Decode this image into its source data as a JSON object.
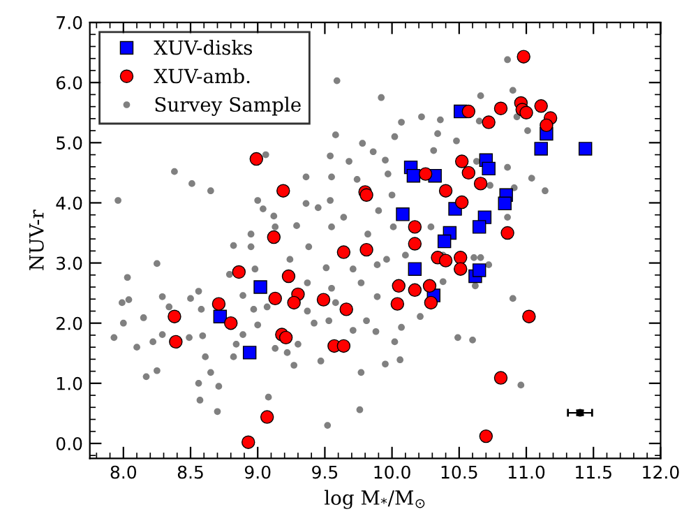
{
  "chart_data": {
    "type": "scatter",
    "xlabel": "log M$_{*}$/M$_{⊙}$",
    "ylabel": "NUV-r",
    "xlim": [
      7.75,
      12.0
    ],
    "xticks": [
      {
        "value": 8,
        "label": "8.0"
      },
      8.5,
      {
        "value": 9,
        "label": "9.0"
      },
      9.5,
      {
        "value": 10,
        "label": "10.0"
      },
      10.5,
      {
        "value": 11,
        "label": "11.0"
      },
      11.5,
      {
        "value": 12,
        "label": "12.0"
      }
    ],
    "ylim": [
      -0.25,
      7.0
    ],
    "yticks": [
      {
        "value": 0,
        "label": "0.0"
      },
      {
        "value": 1,
        "label": "1.0"
      },
      {
        "value": 2,
        "label": "2.0"
      },
      {
        "value": 3,
        "label": "3.0"
      },
      {
        "value": 4,
        "label": "4.0"
      },
      {
        "value": 5,
        "label": "5.0"
      },
      {
        "value": 6,
        "label": "6.0"
      },
      {
        "value": 7,
        "label": "7.0"
      }
    ],
    "grid": false,
    "legend": "top left",
    "series": [
      {
        "name": "XUV-disks",
        "color": "#0000ff",
        "marker": "square",
        "x": [
          9.02,
          8.72,
          8.94,
          10.51,
          10.14,
          10.16,
          10.32,
          10.08,
          10.47,
          10.43,
          10.39,
          11.15,
          11.11,
          11.44,
          10.7,
          10.72,
          10.85,
          10.84,
          10.69,
          10.65,
          10.17,
          10.31,
          10.62,
          10.65
        ],
        "values": [
          2.6,
          2.11,
          1.51,
          5.52,
          4.59,
          4.45,
          4.45,
          3.81,
          3.9,
          3.5,
          3.36,
          5.15,
          4.9,
          4.9,
          4.71,
          4.57,
          4.13,
          3.99,
          3.76,
          3.6,
          2.9,
          2.46,
          2.78,
          2.88
        ]
      },
      {
        "name": "XUV-amb.",
        "color": "#ff0000",
        "marker": "circle",
        "x": [
          8.99,
          9.19,
          9.12,
          10.57,
          9.8,
          9.81,
          10.52,
          10.57,
          10.25,
          10.4,
          10.52,
          10.17,
          10.17,
          10.98,
          10.81,
          10.96,
          10.97,
          11.0,
          11.11,
          11.18,
          11.15,
          10.72,
          10.66,
          10.86,
          8.86,
          8.71,
          9.13,
          8.38,
          8.8,
          8.39,
          9.18,
          9.07,
          8.93,
          9.23,
          9.64,
          9.81,
          9.3,
          9.27,
          9.49,
          9.66,
          9.21,
          9.57,
          9.64,
          10.05,
          10.04,
          10.17,
          10.28,
          10.29,
          10.34,
          10.4,
          10.51,
          10.51,
          11.02,
          10.81,
          10.7
        ],
        "values": [
          4.73,
          4.2,
          3.43,
          5.52,
          4.18,
          4.13,
          4.69,
          4.5,
          4.48,
          4.2,
          4.01,
          3.6,
          3.32,
          6.43,
          5.57,
          5.66,
          5.55,
          5.5,
          5.61,
          5.41,
          5.29,
          5.34,
          4.32,
          3.5,
          2.85,
          2.32,
          2.41,
          2.11,
          2.0,
          1.69,
          1.81,
          0.44,
          0.02,
          2.78,
          3.18,
          3.22,
          2.48,
          2.34,
          2.39,
          2.23,
          1.76,
          1.62,
          1.62,
          2.62,
          2.32,
          2.55,
          2.62,
          2.34,
          3.09,
          3.04,
          3.09,
          2.9,
          2.11,
          1.09,
          0.12
        ]
      },
      {
        "name": "Survey Sample",
        "color": "#808080",
        "marker": "circle",
        "x": [
          9.06,
          8.38,
          8.51,
          8.65,
          7.96,
          9.0,
          9.04,
          9.12,
          9.13,
          8.95,
          9.59,
          9.92,
          9.58,
          9.78,
          10.02,
          10.07,
          10.22,
          10.36,
          9.54,
          9.68,
          9.86,
          9.95,
          9.36,
          9.55,
          9.74,
          9.97,
          9.54,
          9.36,
          9.45,
          9.64,
          9.9,
          10.0,
          9.29,
          9.55,
          9.82,
          10.01,
          10.29,
          10.34,
          10.48,
          10.31,
          10.86,
          10.9,
          10.66,
          10.93,
          11.01,
          10.65,
          10.86,
          11.04,
          11.14,
          10.91,
          10.73,
          10.86,
          10.63,
          8.25,
          8.03,
          7.99,
          8.04,
          8.15,
          8.0,
          7.93,
          8.1,
          8.29,
          8.34,
          8.22,
          8.29,
          8.17,
          8.25,
          8.5,
          8.56,
          8.58,
          8.49,
          8.59,
          8.61,
          8.65,
          8.56,
          8.57,
          8.71,
          8.7,
          8.79,
          8.82,
          8.95,
          8.98,
          8.89,
          8.97,
          8.89,
          8.84,
          8.82,
          9.07,
          9.08,
          9.13,
          9.0,
          9.38,
          9.24,
          9.51,
          9.71,
          9.89,
          9.96,
          10.1,
          9.37,
          9.55,
          9.77,
          9.89,
          9.37,
          9.42,
          9.53,
          9.81,
          9.88,
          9.71,
          10.02,
          10.06,
          9.95,
          9.47,
          9.77,
          9.76,
          9.52,
          9.58,
          9.3,
          10.49,
          10.6,
          10.38,
          10.07,
          10.21,
          10.38,
          9.22,
          9.27,
          10.61,
          10.66,
          10.72,
          10.62,
          10.9,
          10.96
        ],
        "values": [
          4.8,
          4.52,
          4.32,
          4.2,
          4.04,
          4.04,
          3.9,
          3.78,
          3.6,
          3.48,
          6.03,
          5.75,
          5.13,
          4.99,
          5.1,
          5.34,
          5.43,
          5.38,
          4.78,
          4.69,
          4.85,
          4.71,
          4.43,
          4.43,
          4.39,
          4.48,
          4.04,
          3.99,
          3.92,
          3.76,
          3.87,
          4.13,
          3.62,
          3.6,
          3.48,
          3.6,
          3.6,
          5.15,
          5.03,
          4.87,
          6.38,
          5.87,
          5.78,
          5.43,
          5.2,
          5.36,
          4.59,
          4.41,
          4.2,
          4.25,
          4.29,
          3.76,
          4.69,
          2.99,
          2.76,
          2.34,
          2.39,
          2.09,
          2.0,
          1.76,
          1.6,
          2.44,
          2.27,
          1.69,
          1.81,
          1.11,
          1.21,
          2.41,
          2.53,
          2.23,
          1.76,
          1.79,
          1.44,
          1.18,
          1.0,
          0.72,
          0.95,
          0.53,
          2.81,
          3.29,
          3.27,
          2.9,
          2.46,
          2.23,
          1.81,
          1.65,
          1.44,
          2.27,
          0.77,
          1.58,
          1.97,
          3.27,
          3.06,
          2.92,
          2.9,
          2.97,
          3.06,
          3.13,
          2.67,
          2.58,
          2.67,
          2.44,
          2.2,
          2.0,
          2.04,
          2.04,
          1.86,
          1.88,
          1.69,
          1.39,
          1.32,
          1.37,
          1.18,
          0.56,
          0.3,
          2.34,
          1.65,
          1.76,
          1.72,
          2.69,
          1.93,
          2.11,
          3.13,
          1.51,
          1.3,
          3.09,
          3.09,
          2.97,
          2.62,
          2.41,
          0.97
        ]
      },
      {
        "color": "#000000",
        "marker": "circle",
        "x": [
          11.4
        ],
        "values": [
          0.51
        ],
        "errors": [
          0.04
        ],
        "xerrors": [
          0.09
        ]
      }
    ]
  }
}
